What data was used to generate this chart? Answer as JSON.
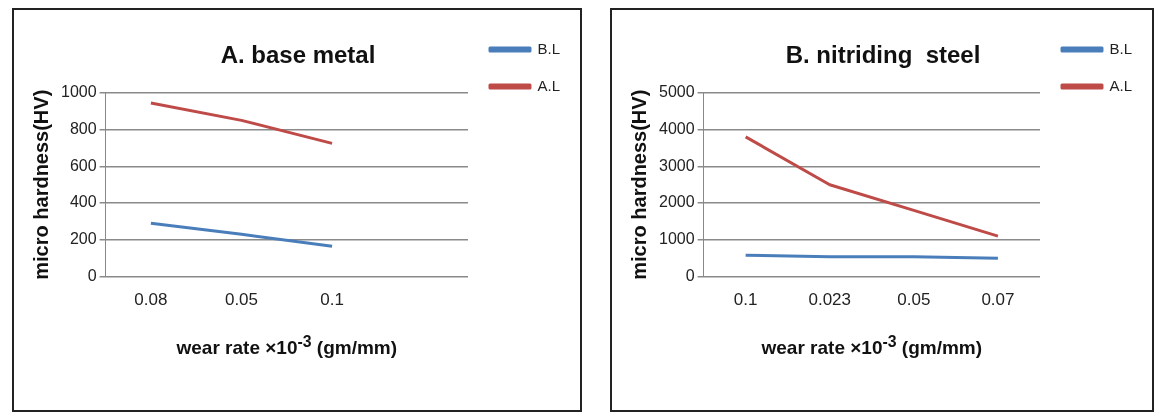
{
  "chart_data": [
    {
      "type": "line",
      "title": "A. base metal",
      "xlabel": "wear rate ×10$^{-3}$ (gm/mm)",
      "ylabel": "micro hardness(HV)",
      "categories": [
        "0.08",
        "0.05",
        "0.1",
        null
      ],
      "ylim": [
        0,
        1000
      ],
      "yticks": [
        0,
        200,
        400,
        600,
        800,
        1000
      ],
      "grid": "y",
      "legend": "top right",
      "marker": "none",
      "series": [
        {
          "name": "B.L",
          "color": "#4a7ebb",
          "values": [
            290,
            230,
            165,
            null
          ]
        },
        {
          "name": "A.L",
          "color": "#be4b48",
          "values": [
            945,
            850,
            725,
            null
          ]
        }
      ]
    },
    {
      "type": "line",
      "title": "B. nitriding  steel",
      "xlabel": "wear rate ×10$^{-3}$ (gm/mm)",
      "ylabel": "micro hardness(HV)",
      "categories": [
        "0.1",
        "0.023",
        "0.05",
        "0.07"
      ],
      "ylim": [
        0,
        5000
      ],
      "yticks": [
        0,
        1000,
        2000,
        3000,
        4000,
        5000
      ],
      "grid": "y",
      "legend": "top right",
      "marker": "none",
      "series": [
        {
          "name": "B.L",
          "color": "#4a7ebb",
          "values": [
            580,
            540,
            540,
            500
          ]
        },
        {
          "name": "A.L",
          "color": "#be4b48",
          "values": [
            3800,
            2500,
            1800,
            1100
          ]
        }
      ]
    }
  ]
}
